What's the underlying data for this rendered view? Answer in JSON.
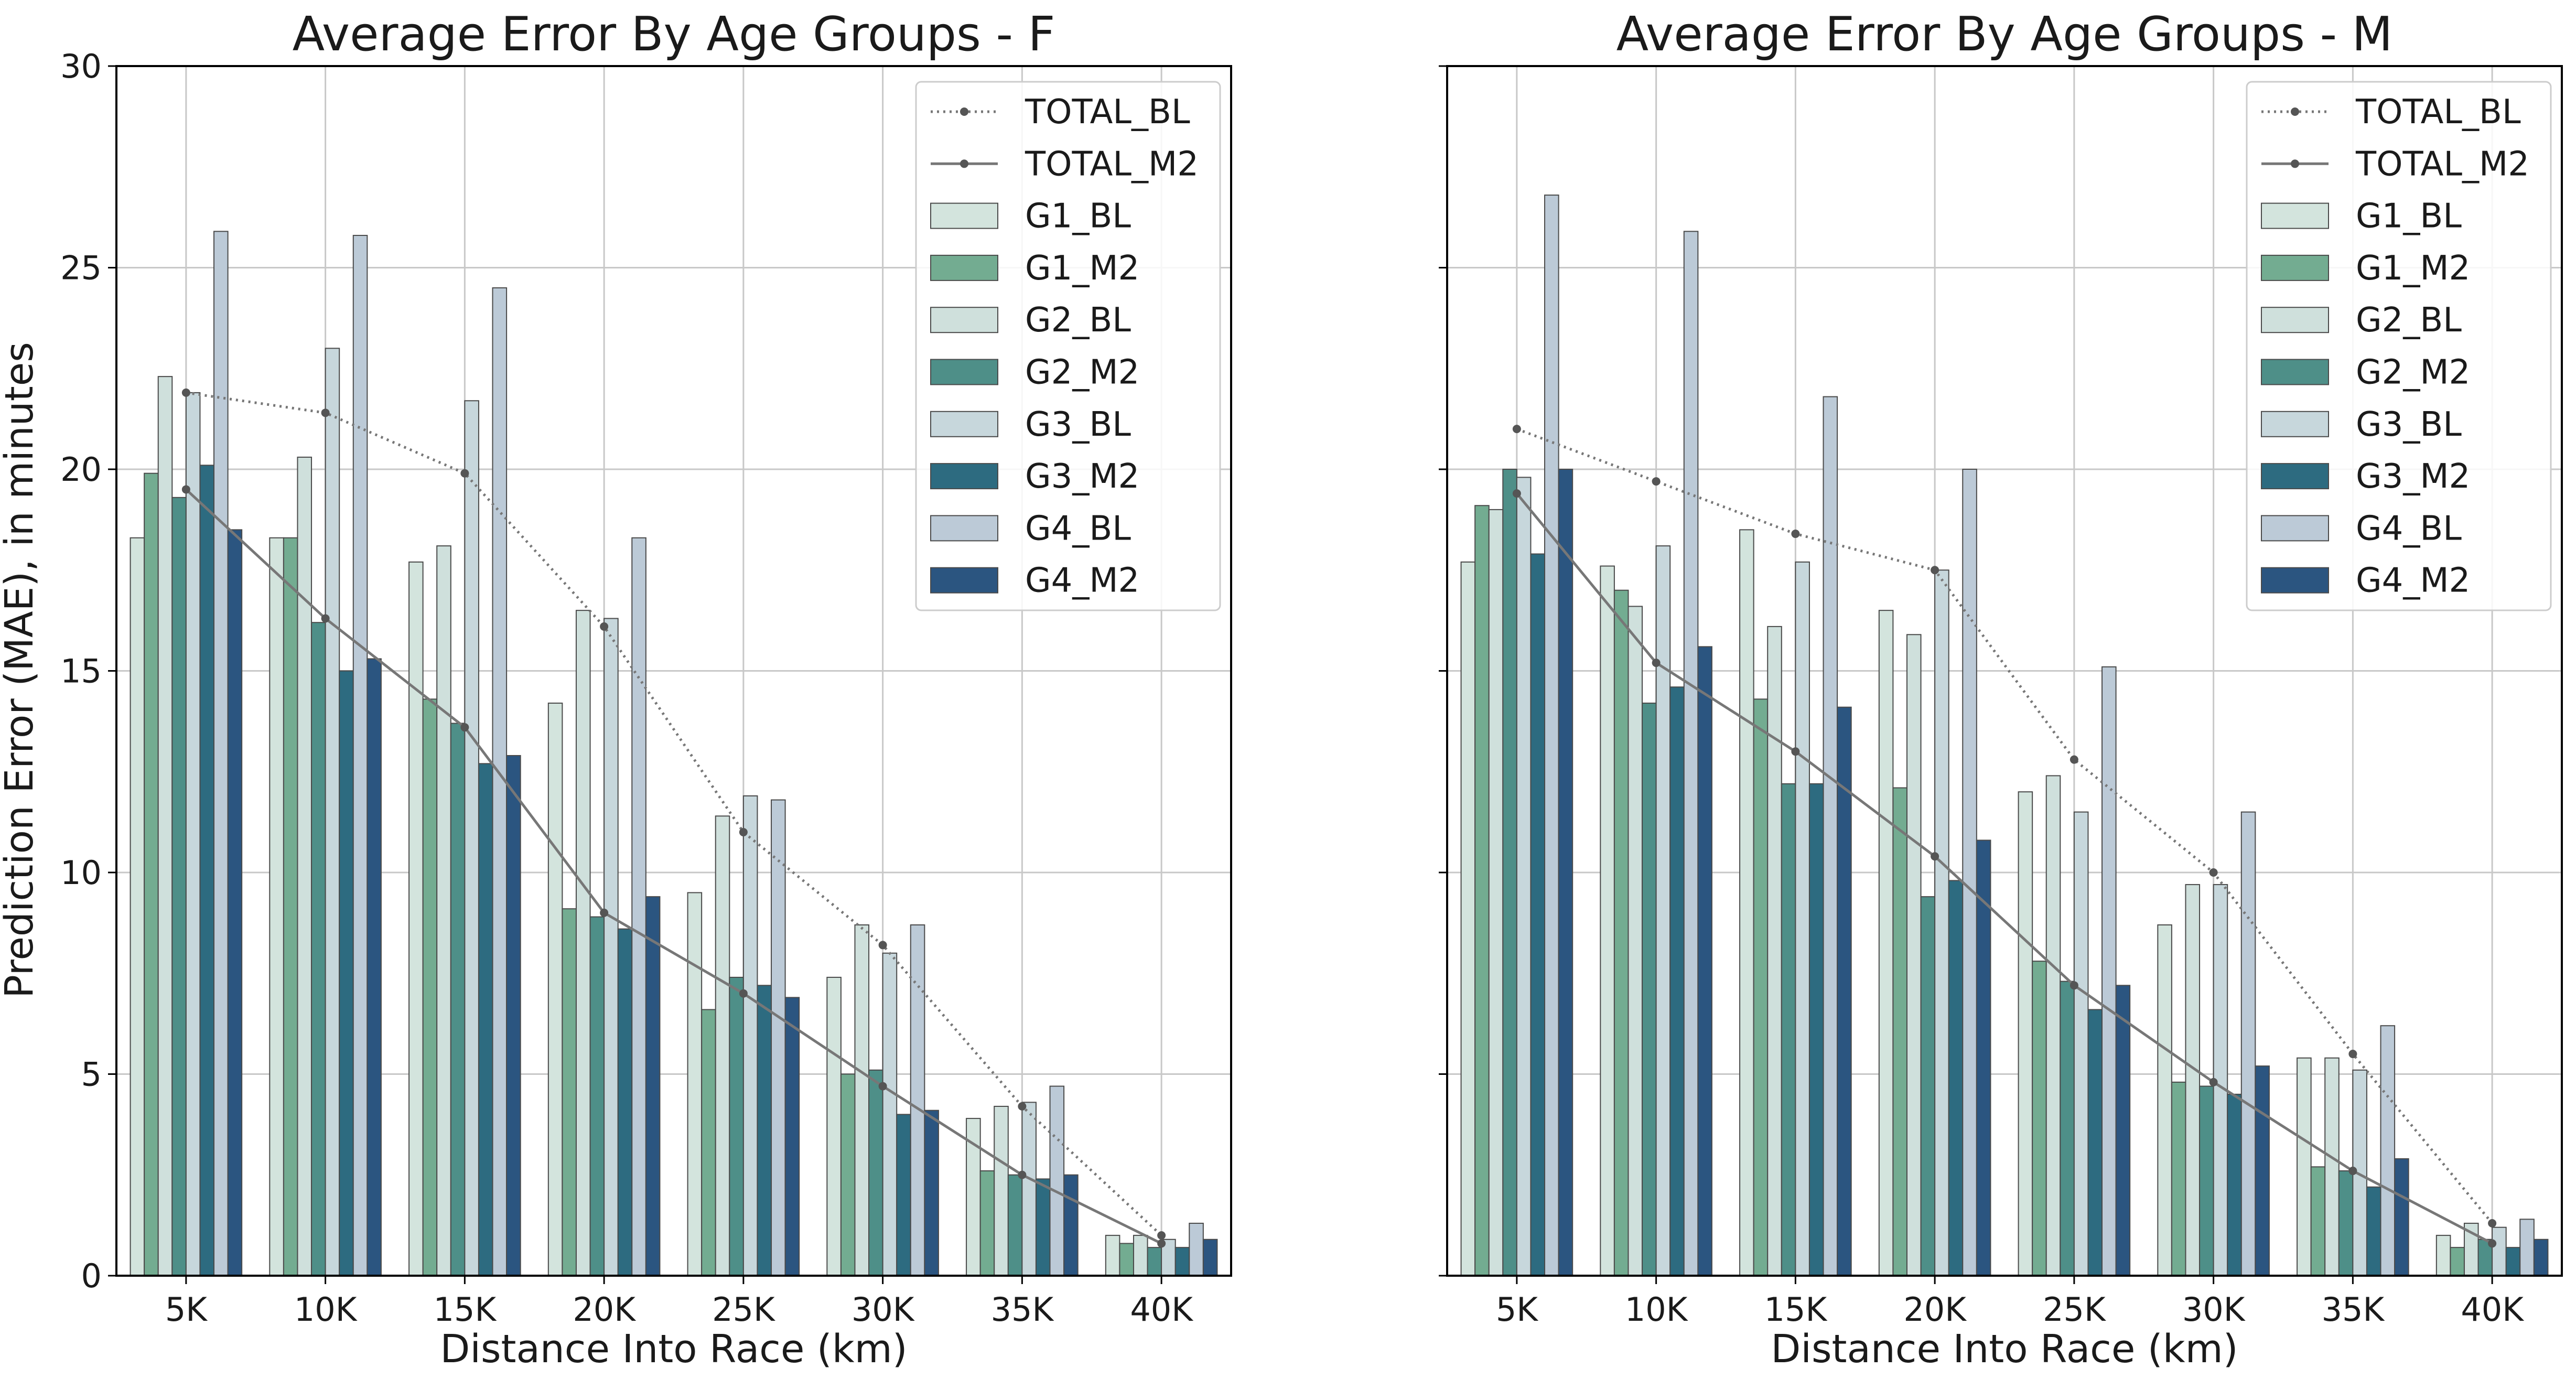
{
  "ylabel": "Prediction Error (MAE), in minutes",
  "chart_data": [
    {
      "type": "bar",
      "title": "Average Error By Age Groups - F",
      "xlabel": "Distance Into Race (km)",
      "ylabel": "Prediction Error (MAE), in minutes",
      "categories": [
        "5K",
        "10K",
        "15K",
        "20K",
        "25K",
        "30K",
        "35K",
        "40K"
      ],
      "ylim": [
        0,
        30
      ],
      "yticks": [
        0,
        5,
        10,
        15,
        20,
        25,
        30
      ],
      "grid": true,
      "legend_position": "top-right",
      "series": [
        {
          "name": "G1_BL",
          "color": "#d3e4dd",
          "values": [
            18.3,
            18.3,
            17.7,
            14.2,
            9.5,
            7.4,
            3.9,
            1.0
          ]
        },
        {
          "name": "G1_M2",
          "color": "#73ac91",
          "values": [
            19.9,
            18.3,
            14.3,
            9.1,
            6.6,
            5.0,
            2.6,
            0.8
          ]
        },
        {
          "name": "G2_BL",
          "color": "#cfe0dc",
          "values": [
            22.3,
            20.3,
            18.1,
            16.5,
            11.4,
            8.7,
            4.2,
            1.0
          ]
        },
        {
          "name": "G2_M2",
          "color": "#4e8f88",
          "values": [
            19.3,
            16.2,
            13.7,
            8.9,
            7.4,
            5.1,
            2.5,
            0.7
          ]
        },
        {
          "name": "G3_BL",
          "color": "#c7d7dc",
          "values": [
            21.9,
            23.0,
            21.7,
            16.3,
            11.9,
            8.0,
            4.3,
            0.9
          ]
        },
        {
          "name": "G3_M2",
          "color": "#2d6b80",
          "values": [
            20.1,
            15.0,
            12.7,
            8.6,
            7.2,
            4.0,
            2.4,
            0.7
          ]
        },
        {
          "name": "G4_BL",
          "color": "#bccad7",
          "values": [
            25.9,
            25.8,
            24.5,
            18.3,
            11.8,
            8.7,
            4.7,
            1.3
          ]
        },
        {
          "name": "G4_M2",
          "color": "#2b5580",
          "values": [
            18.5,
            15.3,
            12.9,
            9.4,
            6.9,
            4.1,
            2.5,
            0.9
          ]
        }
      ],
      "lines": [
        {
          "name": "TOTAL_BL",
          "style": "dotted",
          "color": "#777777",
          "values": [
            21.9,
            21.4,
            19.9,
            16.1,
            11.0,
            8.2,
            4.2,
            1.0
          ]
        },
        {
          "name": "TOTAL_M2",
          "style": "solid",
          "color": "#777777",
          "values": [
            19.5,
            16.3,
            13.6,
            9.0,
            7.0,
            4.7,
            2.5,
            0.8
          ]
        }
      ]
    },
    {
      "type": "bar",
      "title": "Average Error By Age Groups - M",
      "xlabel": "Distance Into Race (km)",
      "ylabel": "",
      "categories": [
        "5K",
        "10K",
        "15K",
        "20K",
        "25K",
        "30K",
        "35K",
        "40K"
      ],
      "ylim": [
        0,
        30
      ],
      "yticks": [
        0,
        5,
        10,
        15,
        20,
        25,
        30
      ],
      "grid": true,
      "legend_position": "top-right",
      "series": [
        {
          "name": "G1_BL",
          "color": "#d3e4dd",
          "values": [
            17.7,
            17.6,
            18.5,
            16.5,
            12.0,
            8.7,
            5.4,
            1.0
          ]
        },
        {
          "name": "G1_M2",
          "color": "#73ac91",
          "values": [
            19.1,
            17.0,
            14.3,
            12.1,
            7.8,
            4.8,
            2.7,
            0.7
          ]
        },
        {
          "name": "G2_BL",
          "color": "#cfe0dc",
          "values": [
            19.0,
            16.6,
            16.1,
            15.9,
            12.4,
            9.7,
            5.4,
            1.3
          ]
        },
        {
          "name": "G2_M2",
          "color": "#4e8f88",
          "values": [
            20.0,
            14.2,
            12.2,
            9.4,
            7.3,
            4.7,
            2.6,
            0.9
          ]
        },
        {
          "name": "G3_BL",
          "color": "#c7d7dc",
          "values": [
            19.8,
            18.1,
            17.7,
            17.5,
            11.5,
            9.7,
            5.1,
            1.2
          ]
        },
        {
          "name": "G3_M2",
          "color": "#2d6b80",
          "values": [
            17.9,
            14.6,
            12.2,
            9.8,
            6.6,
            4.5,
            2.2,
            0.7
          ]
        },
        {
          "name": "G4_BL",
          "color": "#bccad7",
          "values": [
            26.8,
            25.9,
            21.8,
            20.0,
            15.1,
            11.5,
            6.2,
            1.4
          ]
        },
        {
          "name": "G4_M2",
          "color": "#2b5580",
          "values": [
            20.0,
            15.6,
            14.1,
            10.8,
            7.2,
            5.2,
            2.9,
            0.9
          ]
        }
      ],
      "lines": [
        {
          "name": "TOTAL_BL",
          "style": "dotted",
          "color": "#777777",
          "values": [
            21.0,
            19.7,
            18.4,
            17.5,
            12.8,
            10.0,
            5.5,
            1.3
          ]
        },
        {
          "name": "TOTAL_M2",
          "style": "solid",
          "color": "#777777",
          "values": [
            19.4,
            15.2,
            13.0,
            10.4,
            7.2,
            4.8,
            2.6,
            0.8
          ]
        }
      ]
    }
  ]
}
